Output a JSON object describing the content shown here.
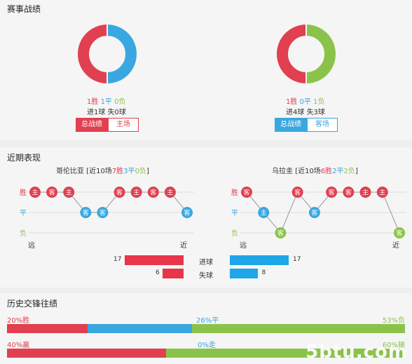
{
  "sections": {
    "record_title": "赛事战绩",
    "recent_title": "近期表现",
    "history_title": "历史交锋往绩"
  },
  "left_team": {
    "donut_colors": [
      "#e04050",
      "#3aa7e0"
    ],
    "wins": "1胜",
    "draws": "1平",
    "losses": "0负",
    "goals_for": "进1球",
    "goals_against": "失0球",
    "tab_total": "总战绩",
    "tab_venue": "主场"
  },
  "right_team": {
    "donut_colors": [
      "#e04050",
      "#8bc34a"
    ],
    "wins": "1胜",
    "draws": "0平",
    "losses": "1负",
    "goals_for": "进4球",
    "goals_against": "失3球",
    "tab_total": "总战绩",
    "tab_venue": "客场"
  },
  "recent": {
    "left": {
      "name_prefix": "哥伦比亚 [近10场",
      "w": "7胜",
      "d": "3平",
      "l": "0负",
      "suffix": "]",
      "results": [
        "W",
        "W",
        "W",
        "D",
        "D",
        "W",
        "W",
        "W",
        "W",
        "D"
      ],
      "venues": [
        "主",
        "客",
        "主",
        "客",
        "客",
        "客",
        "主",
        "客",
        "主",
        "客"
      ]
    },
    "right": {
      "name_prefix": "乌拉圭 [近10场",
      "w": "6胜",
      "d": "2平",
      "l": "2负",
      "suffix": "]",
      "results": [
        "W",
        "D",
        "L",
        "W",
        "D",
        "W",
        "W",
        "W",
        "W",
        "L"
      ],
      "venues": [
        "客",
        "主",
        "客",
        "客",
        "客",
        "客",
        "客",
        "主",
        "主",
        "客"
      ]
    },
    "row_labels": [
      "胜",
      "平",
      "负"
    ],
    "far": "远",
    "near": "近",
    "goals": {
      "label_for": "进球",
      "label_against": "失球",
      "left_for": 17,
      "left_against": 6,
      "right_for": 17,
      "right_against": 8
    }
  },
  "history": {
    "row1": {
      "win_label": "20%胜",
      "draw_label": "26%平",
      "loss_label": "53%负",
      "win": 20,
      "draw": 26,
      "loss": 53
    },
    "row2": {
      "win_label": "40%赢",
      "draw_label": "0%走",
      "loss_label": "60%输",
      "win": 40,
      "draw": 0,
      "loss": 60
    }
  },
  "watermark": "5btu.com"
}
